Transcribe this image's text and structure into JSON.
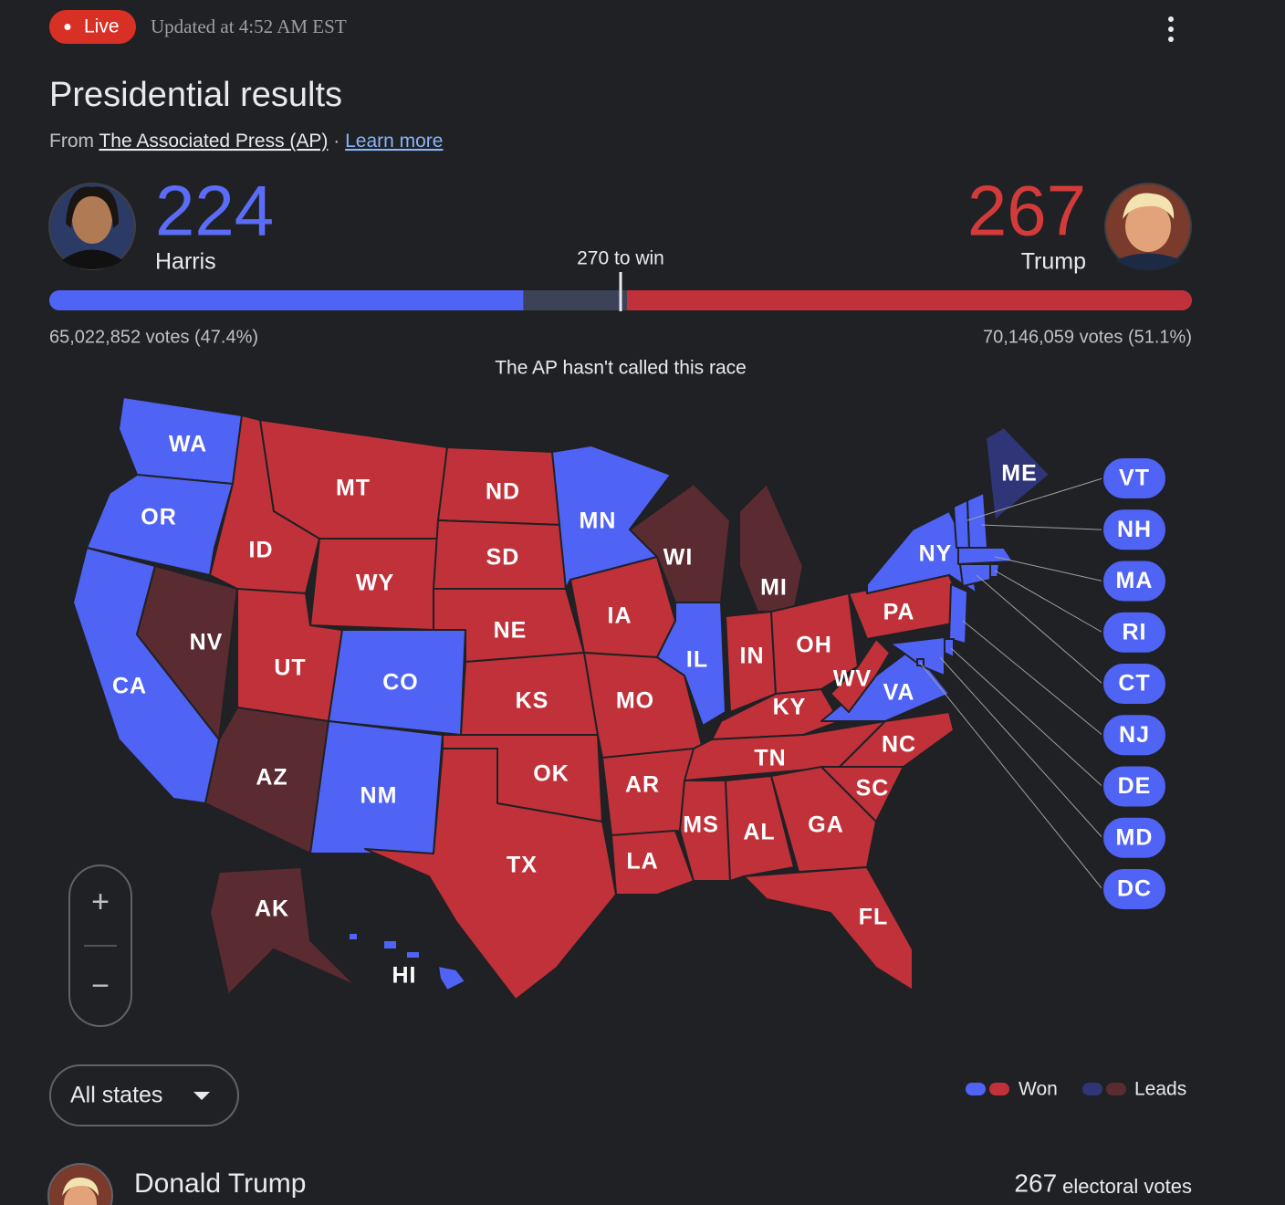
{
  "header": {
    "live": "Live",
    "updated": "Updated at 4:52 AM EST",
    "title": "Presidential results",
    "source_prefix": "From",
    "source_link": "The Associated Press (AP)",
    "separator": "·",
    "learn_more": "Learn more"
  },
  "candidates": [
    {
      "name": "Harris",
      "electoral_votes": 224,
      "popular_votes": "65,022,852 votes (47.4%)"
    },
    {
      "name": "Trump",
      "electoral_votes": 267,
      "popular_votes": "70,146,059 votes (51.1%)"
    }
  ],
  "win_threshold": {
    "value": 270,
    "label": "270 to win"
  },
  "race_status": "The AP hasn't called this race",
  "status_colors": {
    "Harris": {
      "Won": "#4f63f5",
      "Leads": "#2f3577"
    },
    "Trump": {
      "Won": "#c1313a",
      "Leads": "#5a2b30"
    }
  },
  "map": {
    "states": [
      {
        "label": "WA",
        "candidate": "Harris",
        "status": "Won"
      },
      {
        "label": "OR",
        "candidate": "Harris",
        "status": "Won"
      },
      {
        "label": "CA",
        "candidate": "Harris",
        "status": "Won"
      },
      {
        "label": "NV",
        "candidate": "Trump",
        "status": "Leads"
      },
      {
        "label": "ID",
        "candidate": "Trump",
        "status": "Won"
      },
      {
        "label": "MT",
        "candidate": "Trump",
        "status": "Won"
      },
      {
        "label": "WY",
        "candidate": "Trump",
        "status": "Won"
      },
      {
        "label": "UT",
        "candidate": "Trump",
        "status": "Won"
      },
      {
        "label": "CO",
        "candidate": "Harris",
        "status": "Won"
      },
      {
        "label": "AZ",
        "candidate": "Trump",
        "status": "Leads"
      },
      {
        "label": "NM",
        "candidate": "Harris",
        "status": "Won"
      },
      {
        "label": "ND",
        "candidate": "Trump",
        "status": "Won"
      },
      {
        "label": "SD",
        "candidate": "Trump",
        "status": "Won"
      },
      {
        "label": "NE",
        "candidate": "Trump",
        "status": "Won"
      },
      {
        "label": "KS",
        "candidate": "Trump",
        "status": "Won"
      },
      {
        "label": "OK",
        "candidate": "Trump",
        "status": "Won"
      },
      {
        "label": "TX",
        "candidate": "Trump",
        "status": "Won"
      },
      {
        "label": "MN",
        "candidate": "Harris",
        "status": "Won"
      },
      {
        "label": "IA",
        "candidate": "Trump",
        "status": "Won"
      },
      {
        "label": "MO",
        "candidate": "Trump",
        "status": "Won"
      },
      {
        "label": "AR",
        "candidate": "Trump",
        "status": "Won"
      },
      {
        "label": "LA",
        "candidate": "Trump",
        "status": "Won"
      },
      {
        "label": "WI",
        "candidate": "Trump",
        "status": "Leads"
      },
      {
        "label": "IL",
        "candidate": "Harris",
        "status": "Won"
      },
      {
        "label": "MI",
        "candidate": "Trump",
        "status": "Leads"
      },
      {
        "label": "IN",
        "candidate": "Trump",
        "status": "Won"
      },
      {
        "label": "OH",
        "candidate": "Trump",
        "status": "Won"
      },
      {
        "label": "KY",
        "candidate": "Trump",
        "status": "Won"
      },
      {
        "label": "TN",
        "candidate": "Trump",
        "status": "Won"
      },
      {
        "label": "MS",
        "candidate": "Trump",
        "status": "Won"
      },
      {
        "label": "AL",
        "candidate": "Trump",
        "status": "Won"
      },
      {
        "label": "GA",
        "candidate": "Trump",
        "status": "Won"
      },
      {
        "label": "SC",
        "candidate": "Trump",
        "status": "Won"
      },
      {
        "label": "NC",
        "candidate": "Trump",
        "status": "Won"
      },
      {
        "label": "FL",
        "candidate": "Trump",
        "status": "Won"
      },
      {
        "label": "VA",
        "candidate": "Harris",
        "status": "Won"
      },
      {
        "label": "WV",
        "candidate": "Trump",
        "status": "Won"
      },
      {
        "label": "PA",
        "candidate": "Trump",
        "status": "Won"
      },
      {
        "label": "NY",
        "candidate": "Harris",
        "status": "Won"
      },
      {
        "label": "ME",
        "candidate": "Harris",
        "status": "Leads"
      },
      {
        "label": "AK",
        "candidate": "Trump",
        "status": "Leads"
      },
      {
        "label": "HI",
        "candidate": "Harris",
        "status": "Won"
      },
      {
        "label": "VT",
        "candidate": "Harris",
        "status": "Won"
      },
      {
        "label": "NH",
        "candidate": "Harris",
        "status": "Won"
      },
      {
        "label": "MA",
        "candidate": "Harris",
        "status": "Won"
      },
      {
        "label": "RI",
        "candidate": "Harris",
        "status": "Won"
      },
      {
        "label": "CT",
        "candidate": "Harris",
        "status": "Won"
      },
      {
        "label": "NJ",
        "candidate": "Harris",
        "status": "Won"
      },
      {
        "label": "DE",
        "candidate": "Harris",
        "status": "Won"
      },
      {
        "label": "MD",
        "candidate": "Harris",
        "status": "Won"
      },
      {
        "label": "DC",
        "candidate": "Harris",
        "status": "Won"
      }
    ]
  },
  "zoom": {
    "in": "+",
    "out": "−"
  },
  "filter": "All states",
  "legend": [
    {
      "label": "Won"
    },
    {
      "label": "Leads"
    }
  ],
  "summary": {
    "name": "Donald Trump",
    "electoral_votes": 267,
    "unit": "electoral votes"
  }
}
